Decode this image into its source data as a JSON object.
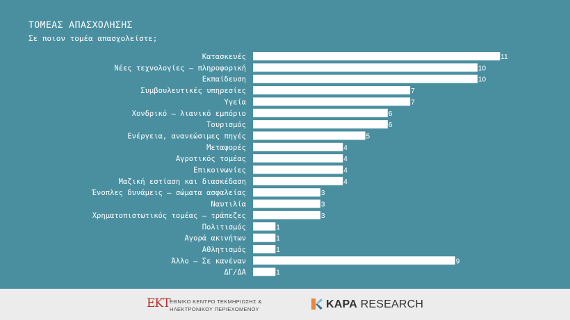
{
  "header": {
    "title": "ΤΟΜΕΑΣ ΑΠΑΣΧΟΛΗΣΗΣ",
    "subtitle": "Σε ποιον τομέα απασχολείστε;"
  },
  "chart_data": {
    "type": "bar",
    "orientation": "horizontal",
    "categories": [
      "Κατασκευές",
      "Νέες τεχνολογίες – πληροφορική",
      "Εκπαίδευση",
      "Συμβουλευτικές υπηρεσίες",
      "Υγεία",
      "Χονδρικό – λιανικό εμπόριο",
      "Τουρισμός",
      "Ενέργεια, ανανεώσιμες πηγές",
      "Μεταφορές",
      "Αγροτικός τομέας",
      "Επικοινωνίες",
      "Μαζική εστίαση και διασκέδαση",
      "Ένοπλες δυνάμεις – σώματα ασφαλείας",
      "Ναυτιλία",
      "Χρηματοπιστωτικός τομέας – τράπεζες",
      "Πολιτισμός",
      "Αγορά ακινήτων",
      "Αθλητισμός",
      "Άλλο – Σε κανέναν",
      "ΔΓ/ΔΑ"
    ],
    "values": [
      11,
      10,
      10,
      7,
      7,
      6,
      6,
      5,
      4,
      4,
      4,
      4,
      3,
      3,
      3,
      1,
      1,
      1,
      9,
      1
    ],
    "data_labels": [
      "11",
      "10",
      "10",
      "7",
      "7",
      "6",
      "6",
      "5",
      "4",
      "4",
      "4",
      "4",
      "3",
      "3",
      "3",
      "1",
      "1",
      "1",
      "9",
      "1"
    ],
    "title": "ΤΟΜΕΑΣ ΑΠΑΣΧΟΛΗΣΗΣ",
    "subtitle": "Σε ποιον τομέα απασχολείστε;",
    "xlabel": "",
    "ylabel": "",
    "xlim": [
      0,
      11
    ],
    "grid": false,
    "bar_color": "#ffffff",
    "label_color": "#ffffff",
    "background_color": "#4a8fa0"
  },
  "footer": {
    "ekt_mark": "EKT",
    "ekt_line1": "ΕΘΝΙΚΟ ΚΕΝΤΡΟ ΤΕΚΜΗΡΙΩΣΗΣ &",
    "ekt_line2": "ΗΛΕΚΤΡΟΝΙΚΟΥ ΠΕΡΙΕΧΟΜΕΝΟΥ",
    "kapa_bold": "KAPA",
    "kapa_rest": " RESEARCH",
    "background_color": "#ececec"
  }
}
